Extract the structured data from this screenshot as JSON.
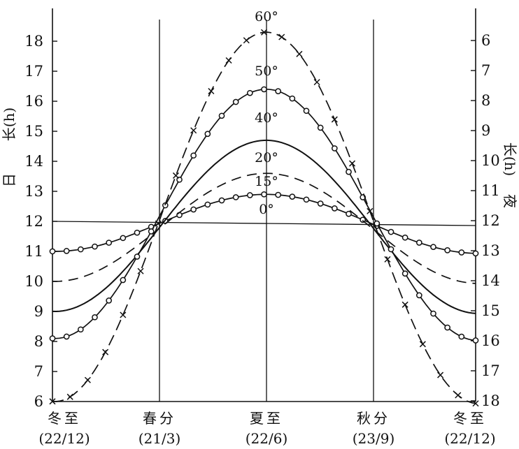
{
  "chart_data": {
    "type": "line",
    "categories": [
      {
        "name": "冬至",
        "date": "(22/12)"
      },
      {
        "name": "春分",
        "date": "(21/3)"
      },
      {
        "name": "夏至",
        "date": "(22/6)"
      },
      {
        "name": "秋分",
        "date": "(23/9)"
      },
      {
        "name": "冬至",
        "date": "(22/12)"
      }
    ],
    "left_axis": {
      "label_char": "日",
      "label": "长(h)",
      "ticks": [
        6,
        7,
        8,
        9,
        10,
        11,
        12,
        13,
        14,
        15,
        16,
        17,
        18
      ],
      "range": [
        6,
        18.5
      ]
    },
    "right_axis": {
      "label_char": "夜",
      "label": "长(h)",
      "ticks": [
        6,
        7,
        8,
        9,
        10,
        11,
        12,
        13,
        14,
        15,
        16,
        17,
        18
      ]
    },
    "series": [
      {
        "name": "0°",
        "style": "circle",
        "winter": 11.0,
        "summer": 12.9
      },
      {
        "name": "15°",
        "style": "dashed",
        "winter": 10.0,
        "summer": 13.6
      },
      {
        "name": "20°",
        "style": "solid",
        "winter": 9.0,
        "summer": 14.7
      },
      {
        "name": "40°",
        "style": "circle",
        "winter": 8.1,
        "summer": 16.4
      },
      {
        "name": "50°",
        "style": "dashcross",
        "winter": 6.0,
        "summer": 18.3
      },
      {
        "name": "60°",
        "style": "none"
      }
    ],
    "grid": false
  }
}
